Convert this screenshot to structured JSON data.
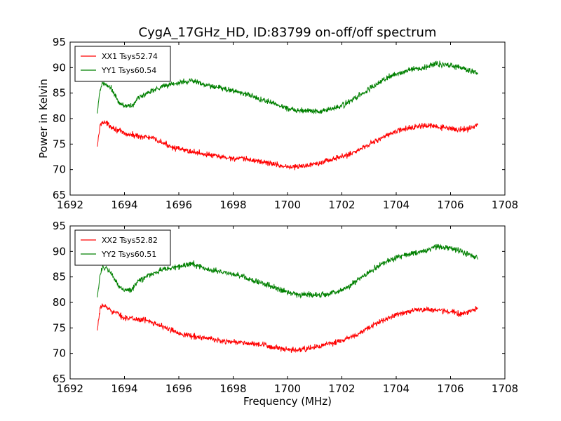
{
  "chart_data": [
    {
      "type": "line",
      "title": "CygA_17GHz_HD, ID:83799 on-off/off spectrum",
      "xlabel": "",
      "ylabel": "Power in Kelvin",
      "xlim": [
        1692,
        1708
      ],
      "ylim": [
        65,
        95
      ],
      "xticks": [
        "1692",
        "1694",
        "1696",
        "1698",
        "1700",
        "1702",
        "1704",
        "1706",
        "1708"
      ],
      "yticks": [
        "65",
        "70",
        "75",
        "80",
        "85",
        "90",
        "95"
      ],
      "legend_position": "top-left",
      "grid": false,
      "series": [
        {
          "name": "XX1 Tsys52.74",
          "color": "#ff0000",
          "x": [
            1693.0,
            1693.1,
            1693.2,
            1693.5,
            1694.0,
            1694.5,
            1695.0,
            1695.5,
            1696.0,
            1696.5,
            1697.0,
            1697.5,
            1698.0,
            1698.5,
            1699.0,
            1699.5,
            1700.0,
            1700.5,
            1701.0,
            1701.5,
            1702.0,
            1702.5,
            1703.0,
            1703.5,
            1704.0,
            1704.5,
            1705.0,
            1705.5,
            1706.0,
            1706.5,
            1707.0
          ],
          "y": [
            74.5,
            78.5,
            79.5,
            78.5,
            77.0,
            76.6,
            76.2,
            75.0,
            74.0,
            73.5,
            73.0,
            72.5,
            72.2,
            72.0,
            71.6,
            71.1,
            70.5,
            70.6,
            71.2,
            71.8,
            72.5,
            73.5,
            75.0,
            76.3,
            77.5,
            78.2,
            78.6,
            78.4,
            78.0,
            77.8,
            78.8
          ]
        },
        {
          "name": "YY1 Tsys60.54",
          "color": "#008000",
          "x": [
            1693.0,
            1693.1,
            1693.2,
            1693.5,
            1693.8,
            1694.0,
            1694.3,
            1694.5,
            1695.0,
            1695.5,
            1696.0,
            1696.5,
            1697.0,
            1697.5,
            1698.0,
            1698.5,
            1699.0,
            1699.5,
            1700.0,
            1700.5,
            1701.0,
            1701.5,
            1702.0,
            1702.5,
            1703.0,
            1703.5,
            1704.0,
            1704.5,
            1705.0,
            1705.5,
            1706.0,
            1706.5,
            1707.0
          ],
          "y": [
            81.0,
            85.5,
            87.0,
            86.0,
            83.0,
            82.5,
            82.5,
            84.0,
            85.5,
            86.5,
            87.0,
            87.5,
            86.5,
            86.0,
            85.5,
            84.8,
            83.8,
            83.0,
            82.0,
            81.6,
            81.5,
            81.7,
            82.5,
            84.0,
            85.8,
            87.5,
            88.8,
            89.5,
            90.0,
            90.8,
            90.5,
            89.8,
            88.8
          ]
        }
      ]
    },
    {
      "type": "line",
      "title": "",
      "xlabel": "Frequency (MHz)",
      "ylabel": "",
      "xlim": [
        1692,
        1708
      ],
      "ylim": [
        65,
        95
      ],
      "xticks": [
        "1692",
        "1694",
        "1696",
        "1698",
        "1700",
        "1702",
        "1704",
        "1706",
        "1708"
      ],
      "yticks": [
        "65",
        "70",
        "75",
        "80",
        "85",
        "90",
        "95"
      ],
      "legend_position": "top-left",
      "grid": false,
      "series": [
        {
          "name": "XX2 Tsys52.82",
          "color": "#ff0000",
          "x": [
            1693.0,
            1693.1,
            1693.2,
            1693.5,
            1694.0,
            1694.5,
            1695.0,
            1695.5,
            1696.0,
            1696.5,
            1697.0,
            1697.5,
            1698.0,
            1698.5,
            1699.0,
            1699.5,
            1700.0,
            1700.5,
            1701.0,
            1701.5,
            1702.0,
            1702.5,
            1703.0,
            1703.5,
            1704.0,
            1704.5,
            1705.0,
            1705.5,
            1706.0,
            1706.5,
            1707.0
          ],
          "y": [
            74.5,
            78.5,
            79.5,
            78.5,
            77.0,
            76.7,
            76.3,
            75.0,
            74.0,
            73.4,
            73.0,
            72.5,
            72.3,
            72.0,
            71.7,
            71.2,
            70.6,
            70.7,
            71.2,
            71.8,
            72.5,
            73.5,
            75.0,
            76.5,
            77.6,
            78.3,
            78.7,
            78.5,
            78.1,
            77.8,
            78.8
          ]
        },
        {
          "name": "YY2 Tsys60.51",
          "color": "#008000",
          "x": [
            1693.0,
            1693.1,
            1693.2,
            1693.5,
            1693.8,
            1694.0,
            1694.3,
            1694.5,
            1695.0,
            1695.5,
            1696.0,
            1696.5,
            1697.0,
            1697.5,
            1698.0,
            1698.5,
            1699.0,
            1699.5,
            1700.0,
            1700.5,
            1701.0,
            1701.5,
            1702.0,
            1702.5,
            1703.0,
            1703.5,
            1704.0,
            1704.5,
            1705.0,
            1705.5,
            1706.0,
            1706.5,
            1707.0
          ],
          "y": [
            81.0,
            85.5,
            87.0,
            85.8,
            83.0,
            82.5,
            82.5,
            84.2,
            85.6,
            86.6,
            87.0,
            87.6,
            86.6,
            86.0,
            85.6,
            84.8,
            83.8,
            83.0,
            82.0,
            81.6,
            81.4,
            81.7,
            82.4,
            84.0,
            85.8,
            87.6,
            88.8,
            89.5,
            90.0,
            90.9,
            90.6,
            89.8,
            88.8
          ]
        }
      ]
    }
  ]
}
